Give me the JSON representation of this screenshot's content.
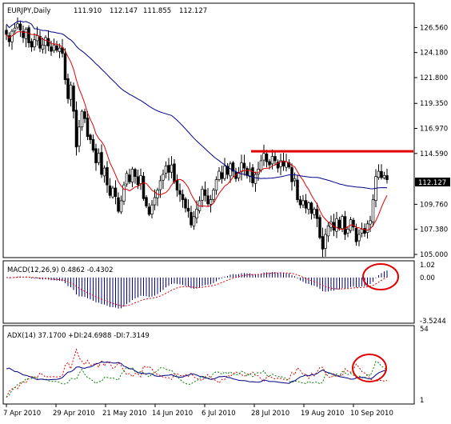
{
  "header": {
    "symbol": "EURJPY,Daily",
    "open": "111.910",
    "high": "112.147",
    "low": "111.855",
    "close": "112.127"
  },
  "colors": {
    "bull_body": "#ffffff",
    "bear_body": "#000000",
    "ma_fast": "#e00000",
    "ma_slow": "#00008b",
    "resistance": "#e00000",
    "highlight_circle": "#e00000",
    "macd_hist": "#00008b",
    "macd_signal": "#e00000",
    "adx_line": "#000080",
    "plus_di": "#008000",
    "minus_di": "#e00000"
  },
  "chart_data": [
    {
      "type": "candlestick",
      "panel": "price",
      "price_axis_ticks": [
        "126.560",
        "124.180",
        "121.800",
        "119.350",
        "116.970",
        "114.590",
        "112.127",
        "109.760",
        "107.380",
        "105.000"
      ],
      "current_price_tag": "112.127",
      "y_range": [
        105.0,
        127.5
      ],
      "resistance_level": 114.8,
      "x_dates": [
        "7 Apr 2010",
        "29 Apr 2010",
        "21 May 2010",
        "14 Jun 2010",
        "6 Jul 2010",
        "28 Jul 2010",
        "19 Aug 2010",
        "10 Sep 2010"
      ],
      "closes": [
        125.9,
        125.2,
        126.2,
        126.5,
        126.9,
        126.3,
        125.6,
        126.4,
        125.1,
        124.7,
        125.4,
        125.8,
        124.6,
        124.9,
        125.6,
        124.8,
        124.3,
        124.9,
        124.4,
        124.6,
        124.1,
        121.6,
        119.8,
        121.1,
        118.6,
        115.2,
        117.1,
        118.6,
        117.9,
        116.2,
        115.9,
        114.9,
        113.7,
        114.6,
        112.6,
        113.2,
        111.6,
        110.6,
        111.3,
        110.5,
        109.1,
        110.1,
        111.6,
        112.7,
        111.9,
        113.1,
        112.4,
        111.6,
        112.5,
        110.3,
        109.6,
        108.8,
        109.7,
        110.4,
        111.1,
        112.0,
        112.6,
        113.4,
        112.8,
        113.5,
        111.9,
        111.1,
        110.7,
        110.2,
        109.4,
        109.1,
        107.8,
        108.6,
        109.3,
        110.1,
        111.2,
        110.6,
        109.8,
        110.2,
        111.1,
        112.1,
        112.9,
        112.2,
        113.4,
        112.6,
        113.6,
        112.9,
        112.2,
        112.8,
        113.7,
        113.2,
        112.5,
        113.1,
        111.8,
        112.6,
        113.1,
        113.9,
        114.6,
        113.8,
        113.5,
        114.3,
        113.9,
        113.2,
        113.9,
        113.4,
        113.8,
        113.3,
        111.9,
        112.2,
        110.2,
        109.7,
        110.1,
        109.4,
        109.9,
        108.9,
        109.3,
        108.4,
        106.6,
        105.5,
        106.9,
        107.7,
        108.1,
        107.3,
        108.4,
        107.5,
        108.6,
        106.9,
        107.4,
        108.3,
        107.6,
        106.2,
        106.9,
        107.4,
        107.0,
        107.9,
        108.2,
        110.2,
        112.4,
        112.9,
        112.3,
        112.5,
        112.1
      ],
      "moving_averages": [
        "fast (red)",
        "slow (blue)"
      ]
    },
    {
      "type": "histogram",
      "panel": "macd",
      "label": "MACD(12,26,9) 0.4862 -0.4302",
      "axis_ticks": [
        "1.02",
        "0.00",
        "-3.5244"
      ],
      "y_range": [
        -3.6,
        1.1
      ]
    },
    {
      "type": "line",
      "panel": "adx",
      "label": "ADX(14) 37.1700 +DI:24.6988 -DI:7.3149",
      "axis_ticks": [
        "54",
        "1"
      ],
      "y_range": [
        1,
        54
      ]
    }
  ]
}
